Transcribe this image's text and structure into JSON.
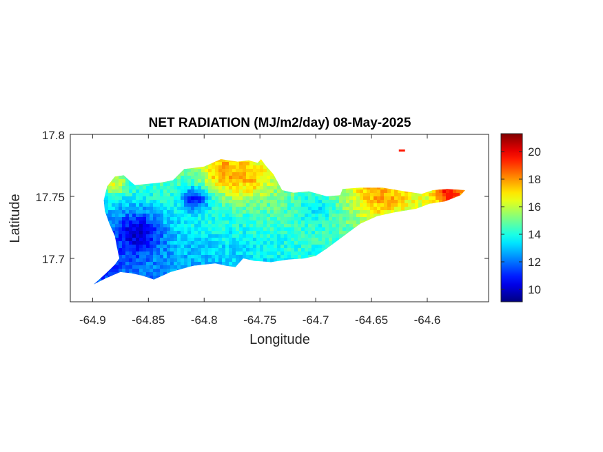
{
  "chart_data": {
    "type": "heatmap",
    "title": "NET RADIATION (MJ/m2/day) 08-May-2025",
    "xlabel": "Longitude",
    "ylabel": "Latitude",
    "xlim": [
      -64.92,
      -64.545
    ],
    "ylim": [
      17.665,
      17.8
    ],
    "x_ticks": [
      -64.9,
      -64.85,
      -64.8,
      -64.75,
      -64.7,
      -64.65,
      -64.6
    ],
    "x_tick_labels": [
      "-64.9",
      "-64.85",
      "-64.8",
      "-64.75",
      "-64.7",
      "-64.65",
      "-64.6"
    ],
    "y_ticks": [
      17.7,
      17.75,
      17.8
    ],
    "y_tick_labels": [
      "17.7",
      "17.75",
      "17.8"
    ],
    "colormap": "jet",
    "colorbar": {
      "limits": [
        9.1,
        21.3
      ],
      "ticks": [
        10,
        12,
        14,
        16,
        18,
        20
      ],
      "tick_labels": [
        "10",
        "12",
        "14",
        "16",
        "18",
        "20"
      ]
    },
    "grid": false,
    "island_outline": [
      [
        -64.899,
        17.679
      ],
      [
        -64.888,
        17.688
      ],
      [
        -64.88,
        17.695
      ],
      [
        -64.876,
        17.7
      ],
      [
        -64.878,
        17.708
      ],
      [
        -64.88,
        17.718
      ],
      [
        -64.885,
        17.728
      ],
      [
        -64.889,
        17.738
      ],
      [
        -64.89,
        17.747
      ],
      [
        -64.887,
        17.758
      ],
      [
        -64.88,
        17.766
      ],
      [
        -64.872,
        17.767
      ],
      [
        -64.866,
        17.762
      ],
      [
        -64.862,
        17.759
      ],
      [
        -64.852,
        17.76
      ],
      [
        -64.84,
        17.761
      ],
      [
        -64.828,
        17.763
      ],
      [
        -64.818,
        17.772
      ],
      [
        -64.8,
        17.774
      ],
      [
        -64.785,
        17.78
      ],
      [
        -64.77,
        17.778
      ],
      [
        -64.76,
        17.779
      ],
      [
        -64.752,
        17.777
      ],
      [
        -64.749,
        17.78
      ],
      [
        -64.745,
        17.775
      ],
      [
        -64.738,
        17.768
      ],
      [
        -64.73,
        17.755
      ],
      [
        -64.72,
        17.753
      ],
      [
        -64.706,
        17.754
      ],
      [
        -64.69,
        17.75
      ],
      [
        -64.678,
        17.751
      ],
      [
        -64.676,
        17.756
      ],
      [
        -64.66,
        17.757
      ],
      [
        -64.64,
        17.757
      ],
      [
        -64.62,
        17.754
      ],
      [
        -64.605,
        17.752
      ],
      [
        -64.595,
        17.755
      ],
      [
        -64.582,
        17.756
      ],
      [
        -64.566,
        17.755
      ],
      [
        -64.57,
        17.751
      ],
      [
        -64.584,
        17.746
      ],
      [
        -64.598,
        17.744
      ],
      [
        -64.61,
        17.74
      ],
      [
        -64.63,
        17.737
      ],
      [
        -64.645,
        17.734
      ],
      [
        -64.66,
        17.728
      ],
      [
        -64.675,
        17.718
      ],
      [
        -64.69,
        17.708
      ],
      [
        -64.7,
        17.702
      ],
      [
        -64.71,
        17.7
      ],
      [
        -64.725,
        17.699
      ],
      [
        -64.74,
        17.697
      ],
      [
        -64.755,
        17.698
      ],
      [
        -64.765,
        17.7
      ],
      [
        -64.772,
        17.693
      ],
      [
        -64.78,
        17.694
      ],
      [
        -64.79,
        17.696
      ],
      [
        -64.81,
        17.694
      ],
      [
        -64.83,
        17.689
      ],
      [
        -64.845,
        17.683
      ],
      [
        -64.855,
        17.686
      ],
      [
        -64.865,
        17.688
      ],
      [
        -64.875,
        17.689
      ],
      [
        -64.888,
        17.684
      ]
    ],
    "value_centers": [
      {
        "lon": -64.86,
        "lat": 17.72,
        "value": 10.0,
        "spread": 0.022
      },
      {
        "lon": -64.808,
        "lat": 17.748,
        "value": 10.5,
        "spread": 0.012
      },
      {
        "lon": -64.885,
        "lat": 17.7,
        "value": 11.0,
        "spread": 0.015
      },
      {
        "lon": -64.88,
        "lat": 17.76,
        "value": 16.5,
        "spread": 0.01
      },
      {
        "lon": -64.78,
        "lat": 17.77,
        "value": 18.0,
        "spread": 0.02
      },
      {
        "lon": -64.76,
        "lat": 17.765,
        "value": 17.5,
        "spread": 0.018
      },
      {
        "lon": -64.64,
        "lat": 17.752,
        "value": 17.8,
        "spread": 0.025
      },
      {
        "lon": -64.58,
        "lat": 17.752,
        "value": 20.0,
        "spread": 0.012
      },
      {
        "lon": -64.7,
        "lat": 17.74,
        "value": 13.5,
        "spread": 0.02
      },
      {
        "lon": -64.72,
        "lat": 17.71,
        "value": 14.0,
        "spread": 0.015
      }
    ],
    "islet": {
      "lon": -64.623,
      "lat": 17.787,
      "value": 19.5
    }
  }
}
